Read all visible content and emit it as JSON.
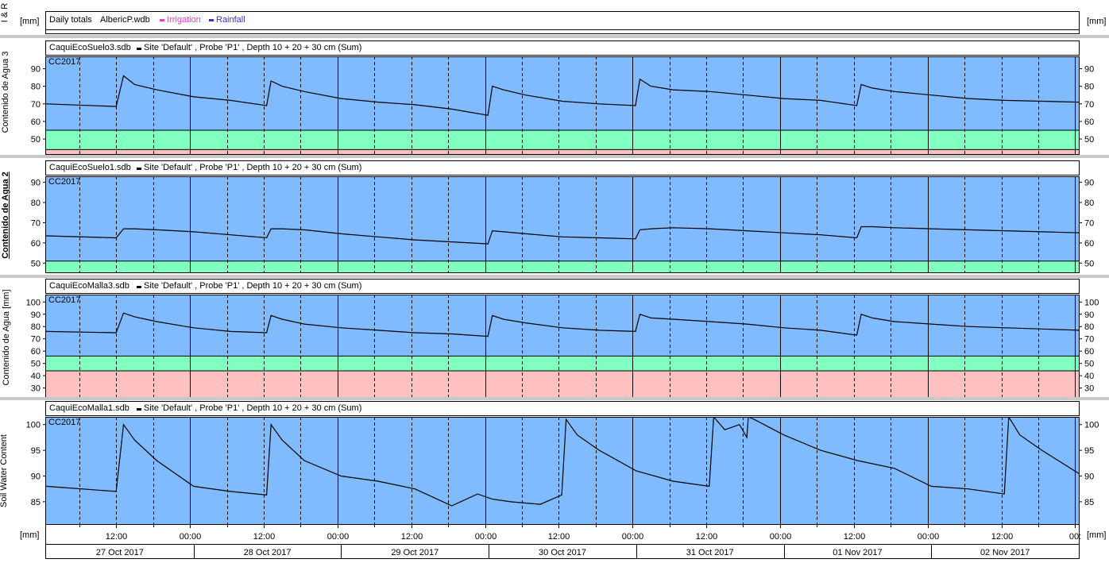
{
  "top_strip": {
    "left_axis_label": "I & R",
    "unit_left": "[mm]",
    "unit_right": "[mm]",
    "title": "Daily totals",
    "file": "AlbericP.wdb",
    "legend": [
      {
        "name": "Irrigation",
        "color": "#ff33cc"
      },
      {
        "name": "Rainfall",
        "color": "#3333cc"
      }
    ]
  },
  "x_axis": {
    "unit_left": "[mm]",
    "unit_right": "[mm]",
    "time_ticks": [
      "12:00",
      "00:00",
      "12:00",
      "00:00",
      "12:00",
      "00:00",
      "12:00",
      "00:00",
      "12:00",
      "00:00",
      "12:00",
      "00:00",
      "12:00",
      "00:"
    ],
    "dates": [
      "27 Oct 2017",
      "28 Oct 2017",
      "29 Oct 2017",
      "30 Oct 2017",
      "31 Oct 2017",
      "01 Nov 2017",
      "02 Nov 2017"
    ]
  },
  "chart_data": [
    {
      "type": "line",
      "ylabel": "Contenido de Agua 3",
      "file": "CaquiEcoSuelo3.sdb",
      "series_label": "Site 'Default' , Probe 'P1' , Depth 10 + 20 + 30 cm (Sum)",
      "zone_label": "CC2017",
      "ylim": [
        41,
        97
      ],
      "yticks": [
        50,
        60,
        70,
        80,
        90
      ],
      "bands": [
        {
          "from": 55,
          "to": 97,
          "color": "#80bbff"
        },
        {
          "from": 44,
          "to": 55,
          "color": "#80ffc0"
        },
        {
          "from": 41,
          "to": 44,
          "color": "#ffc0c0"
        }
      ],
      "x": [
        0,
        0.95,
        1.05,
        1.2,
        1.5,
        2,
        2.5,
        2.99,
        3.05,
        3.2,
        3.5,
        4,
        4.5,
        5,
        5.5,
        5.99,
        6.05,
        6.2,
        6.5,
        7,
        7.5,
        7.99,
        8.05,
        8.2,
        8.5,
        9,
        9.5,
        10,
        10.5,
        10.99,
        11.05,
        11.2,
        11.5,
        12,
        12.5,
        13,
        13.5,
        14
      ],
      "values": [
        70,
        68.5,
        86,
        81,
        78,
        74,
        72,
        69,
        83,
        80,
        77,
        73,
        71,
        69.5,
        67,
        63.5,
        80,
        78,
        75,
        71.5,
        70,
        69,
        84,
        80,
        78,
        77,
        75,
        73,
        72,
        69,
        81,
        79,
        77,
        75,
        73,
        72,
        71.5,
        71
      ]
    },
    {
      "type": "line",
      "ylabel": "Contenido de Agua 2",
      "file": "CaquiEcoSuelo1.sdb",
      "series_label": "Site 'Default' , Probe 'P1' , Depth 10 + 20 + 30 cm (Sum)",
      "zone_label": "CC2017",
      "ylim": [
        45,
        93
      ],
      "yticks": [
        50,
        60,
        70,
        80,
        90
      ],
      "bands": [
        {
          "from": 51,
          "to": 93,
          "color": "#80bbff"
        },
        {
          "from": 45,
          "to": 51,
          "color": "#80ffc0"
        }
      ],
      "x": [
        0,
        0.95,
        1.05,
        1.2,
        1.5,
        2,
        2.5,
        2.99,
        3.05,
        3.2,
        3.5,
        4,
        4.5,
        5,
        5.5,
        5.99,
        6.05,
        6.2,
        6.5,
        7,
        7.5,
        7.99,
        8.05,
        8.2,
        8.5,
        9,
        9.5,
        10,
        10.5,
        10.99,
        11.05,
        11.2,
        11.5,
        12,
        12.5,
        13,
        13.5,
        14
      ],
      "values": [
        63.5,
        62.5,
        67,
        67,
        66.5,
        65.5,
        64,
        62.5,
        67,
        67,
        66.5,
        64.5,
        63,
        61.5,
        60.5,
        59.5,
        66,
        65.5,
        64.5,
        63,
        62.5,
        62,
        66.5,
        67,
        67.5,
        67,
        66,
        65,
        64,
        62.5,
        68,
        68,
        67.5,
        67,
        66.5,
        66,
        65.5,
        65
      ]
    },
    {
      "type": "line",
      "ylabel": "Contenido de Agua [mm]",
      "file": "CaquiEcoMalla3.sdb",
      "series_label": "Site 'Default' , Probe 'P1' , Depth 10 + 20 + 30 cm (Sum)",
      "zone_label": "CC2017",
      "ylim": [
        22,
        106
      ],
      "yticks": [
        30,
        40,
        50,
        60,
        70,
        80,
        90,
        100
      ],
      "bands": [
        {
          "from": 56,
          "to": 106,
          "color": "#80bbff"
        },
        {
          "from": 44,
          "to": 56,
          "color": "#80ffc0"
        },
        {
          "from": 22,
          "to": 44,
          "color": "#ffc0c0"
        }
      ],
      "x": [
        0,
        0.95,
        1.05,
        1.2,
        1.5,
        2,
        2.5,
        2.99,
        3.05,
        3.2,
        3.5,
        4,
        4.5,
        5,
        5.5,
        5.99,
        6.05,
        6.2,
        6.5,
        7,
        7.5,
        7.99,
        8.05,
        8.2,
        8.5,
        9,
        9.5,
        10,
        10.5,
        10.99,
        11.05,
        11.2,
        11.5,
        12,
        12.5,
        13,
        13.5,
        14
      ],
      "values": [
        76,
        75,
        91,
        88,
        84,
        79,
        76,
        75,
        89,
        86,
        82,
        79,
        77,
        75,
        74,
        72,
        89,
        86,
        83,
        79,
        77,
        76,
        90,
        87,
        86,
        84,
        82,
        79,
        77,
        73,
        90,
        87,
        84,
        82,
        80,
        79,
        78,
        77
      ]
    },
    {
      "type": "line",
      "ylabel": "Soil Water Content",
      "file": "CaquiEcoMalla1.sdb",
      "series_label": "Site 'Default' , Probe 'P1' , Depth 10 + 20 + 30 cm (Sum)",
      "zone_label": "CC2017",
      "ylim": [
        80.5,
        101.5
      ],
      "yticks": [
        85,
        90,
        95,
        100
      ],
      "bands": [
        {
          "from": 80.5,
          "to": 101.5,
          "color": "#80bbff"
        }
      ],
      "x": [
        0,
        0.95,
        1.05,
        1.2,
        1.5,
        2,
        2.5,
        2.99,
        3.05,
        3.2,
        3.5,
        4,
        4.5,
        5,
        5.5,
        5.85,
        6.05,
        6.3,
        6.7,
        6.99,
        7.05,
        7.2,
        7.5,
        8,
        8.5,
        8.99,
        9.05,
        9.2,
        9.4,
        9.5,
        9.52,
        9.6,
        10,
        10.5,
        11,
        11.5,
        12,
        12.5,
        12.99,
        13.05,
        13.2,
        13.5,
        14
      ],
      "values": [
        88,
        87,
        100,
        97,
        93,
        88,
        87,
        86.3,
        100,
        97,
        93,
        90,
        89,
        87.5,
        84.2,
        86.5,
        85.5,
        85,
        84.5,
        86.3,
        101,
        98,
        95,
        91,
        89,
        88,
        101.5,
        99,
        100,
        97.5,
        101.5,
        101,
        98,
        95,
        93,
        91.5,
        88,
        87.5,
        86.5,
        101.5,
        98,
        95,
        90.5
      ]
    }
  ]
}
